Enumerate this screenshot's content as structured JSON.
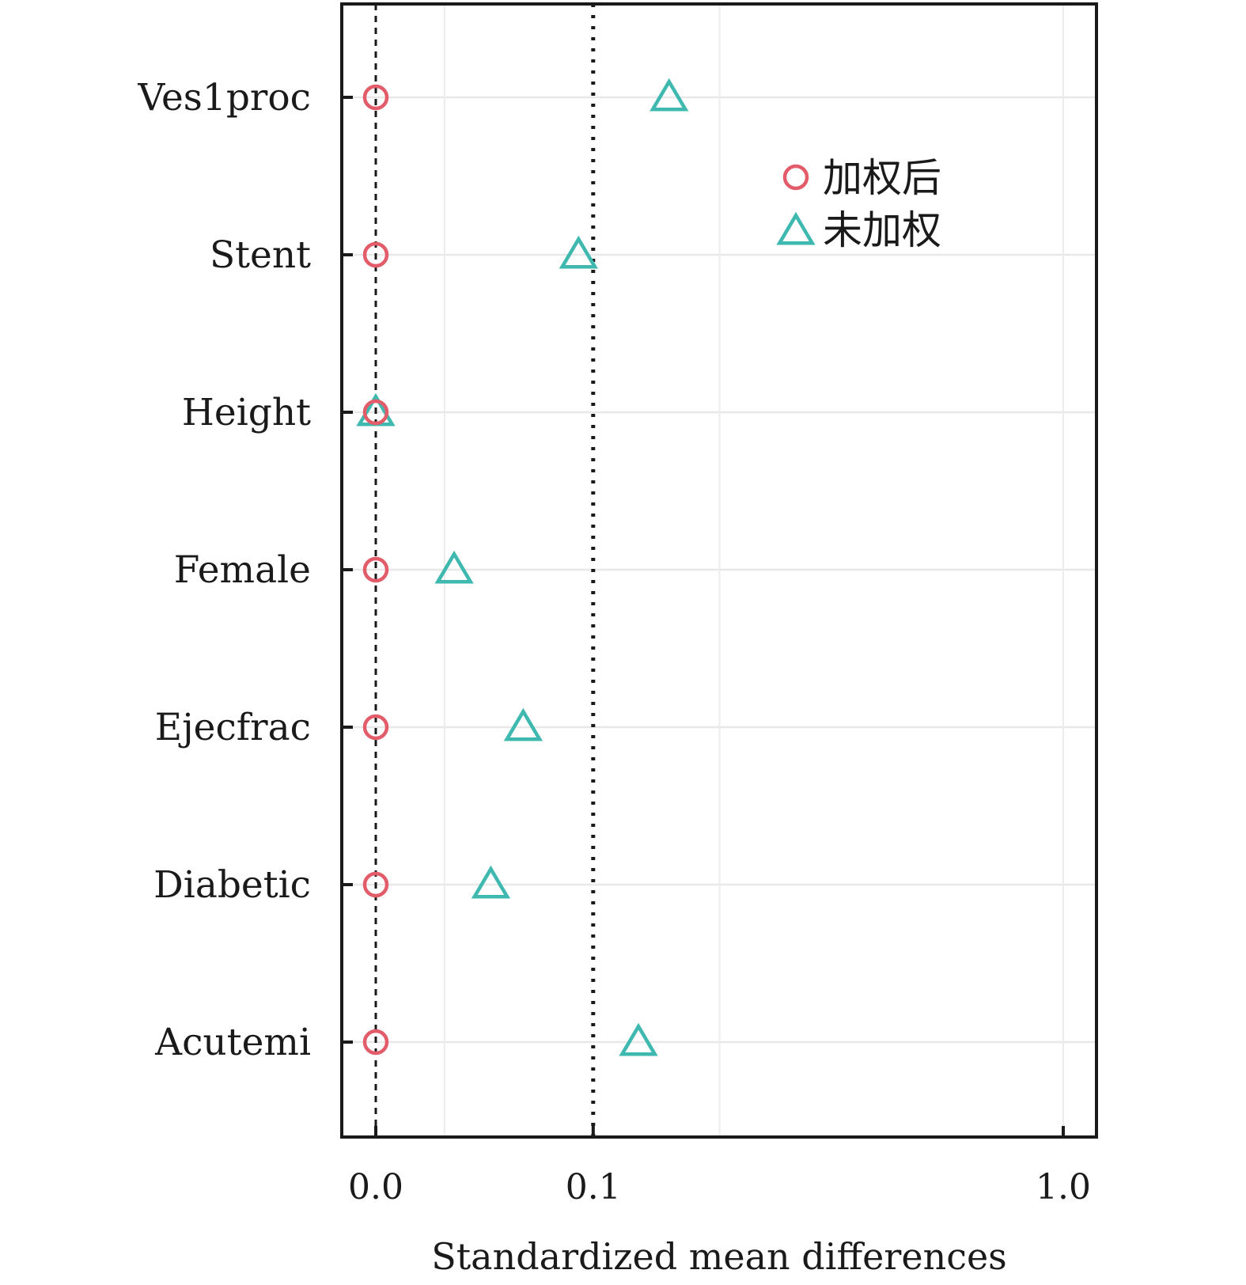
{
  "chart_data": {
    "type": "scatter",
    "title": "",
    "xlabel": "Standardized mean differences",
    "ylabel": "",
    "x_scale": "sqrt",
    "xlim": [
      0,
      1.05
    ],
    "x_ticks": [
      0.0,
      0.1,
      1.0
    ],
    "x_tick_labels": [
      "0.0",
      "0.1",
      "1.0"
    ],
    "reference_lines": [
      {
        "x": 0.0,
        "style": "dashed"
      },
      {
        "x": 0.1,
        "style": "dotted"
      }
    ],
    "categories": [
      "Ves1proc",
      "Stent",
      "Height",
      "Female",
      "Ejecfrac",
      "Diabetic",
      "Acutemi"
    ],
    "series": [
      {
        "name": "加权后",
        "marker": "circle",
        "color": "#e25c6a",
        "values": [
          0.0,
          0.0,
          0.0,
          0.0,
          0.0,
          0.0,
          0.0
        ]
      },
      {
        "name": "未加权",
        "marker": "triangle",
        "color": "#3fb9b0",
        "values": [
          0.182,
          0.087,
          0.0,
          0.013,
          0.046,
          0.028,
          0.146
        ]
      }
    ],
    "grid": true,
    "legend_position": "top-right"
  }
}
